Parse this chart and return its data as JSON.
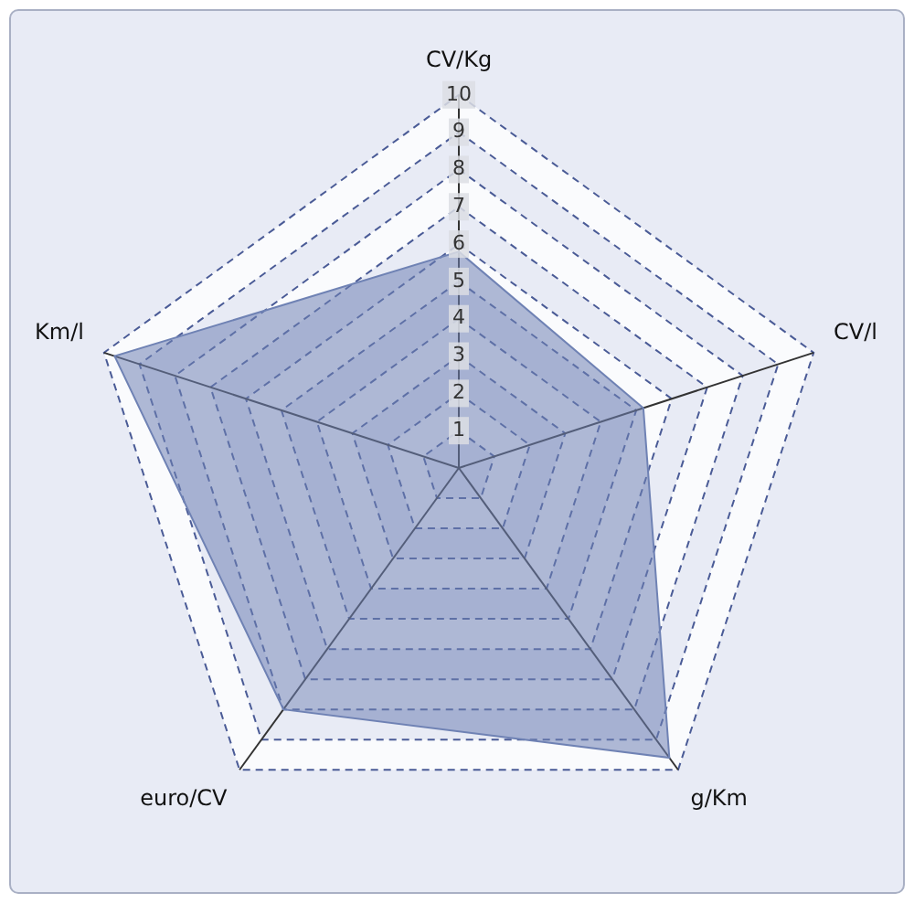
{
  "chart_data": {
    "type": "radar",
    "categories": [
      "CV/Kg",
      "CV/l",
      "g/Km",
      "euro/CV",
      "Km/l"
    ],
    "series": [
      {
        "color": "#6f82b4",
        "values": [
          5.8,
          5.2,
          9.6,
          8.0,
          9.7
        ]
      }
    ],
    "ylim": [
      0,
      10
    ],
    "yticks": [
      1,
      2,
      3,
      4,
      5,
      6,
      7,
      8,
      9,
      10
    ],
    "grid": true,
    "legend": false
  }
}
